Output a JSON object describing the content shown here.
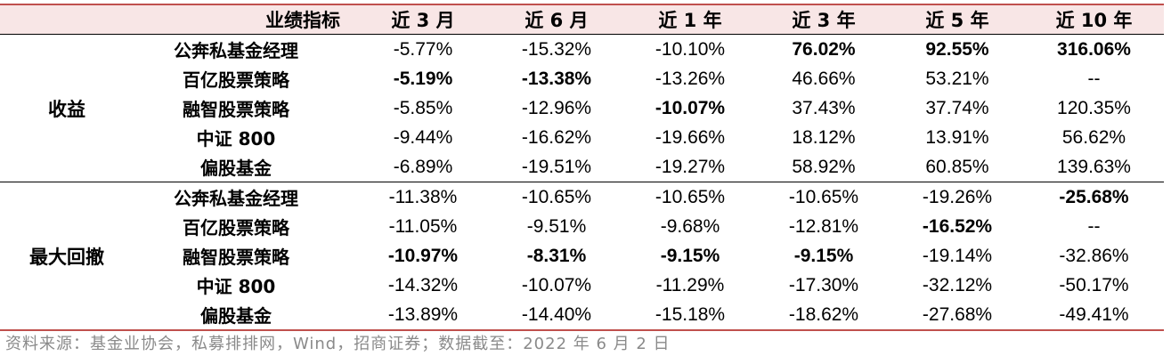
{
  "header": {
    "metric": "业绩指标",
    "periods": [
      "近 3 月",
      "近 6 月",
      "近 1 年",
      "近 3 年",
      "近 5 年",
      "近 10 年"
    ]
  },
  "groups": [
    {
      "label": "收益",
      "rows": [
        {
          "name": "公奔私基金经理",
          "values": [
            "-5.77%",
            "-15.32%",
            "-10.10%",
            "76.02%",
            "92.55%",
            "316.06%"
          ],
          "bold": [
            false,
            false,
            false,
            true,
            true,
            true
          ]
        },
        {
          "name": "百亿股票策略",
          "values": [
            "-5.19%",
            "-13.38%",
            "-13.26%",
            "46.66%",
            "53.21%",
            "--"
          ],
          "bold": [
            true,
            true,
            false,
            false,
            false,
            false
          ]
        },
        {
          "name": "融智股票策略",
          "values": [
            "-5.85%",
            "-12.96%",
            "-10.07%",
            "37.43%",
            "37.74%",
            "120.35%"
          ],
          "bold": [
            false,
            false,
            true,
            false,
            false,
            false
          ]
        },
        {
          "name": "中证 800",
          "values": [
            "-9.44%",
            "-16.62%",
            "-19.66%",
            "18.12%",
            "13.91%",
            "56.62%"
          ],
          "bold": [
            false,
            false,
            false,
            false,
            false,
            false
          ]
        },
        {
          "name": "偏股基金",
          "values": [
            "-6.89%",
            "-19.51%",
            "-19.27%",
            "58.92%",
            "60.85%",
            "139.63%"
          ],
          "bold": [
            false,
            false,
            false,
            false,
            false,
            false
          ]
        }
      ]
    },
    {
      "label": "最大回撤",
      "rows": [
        {
          "name": "公奔私基金经理",
          "values": [
            "-11.38%",
            "-10.65%",
            "-10.65%",
            "-10.65%",
            "-19.26%",
            "-25.68%"
          ],
          "bold": [
            false,
            false,
            false,
            false,
            false,
            true
          ]
        },
        {
          "name": "百亿股票策略",
          "values": [
            "-11.05%",
            "-9.51%",
            "-9.68%",
            "-12.81%",
            "-16.52%",
            "--"
          ],
          "bold": [
            false,
            false,
            false,
            false,
            true,
            false
          ]
        },
        {
          "name": "融智股票策略",
          "values": [
            "-10.97%",
            "-8.31%",
            "-9.15%",
            "-9.15%",
            "-19.14%",
            "-32.86%"
          ],
          "bold": [
            true,
            true,
            true,
            true,
            false,
            false
          ]
        },
        {
          "name": "中证 800",
          "values": [
            "-14.32%",
            "-10.07%",
            "-11.29%",
            "-17.30%",
            "-32.12%",
            "-50.17%"
          ],
          "bold": [
            false,
            false,
            false,
            false,
            false,
            false
          ]
        },
        {
          "name": "偏股基金",
          "values": [
            "-13.89%",
            "-14.40%",
            "-15.18%",
            "-18.62%",
            "-27.68%",
            "-49.41%"
          ],
          "bold": [
            false,
            false,
            false,
            false,
            false,
            false
          ]
        }
      ]
    }
  ],
  "source": "资料来源：基金业协会，私募排排网，Wind，招商证券；数据截至：2022 年 6 月 2 日"
}
